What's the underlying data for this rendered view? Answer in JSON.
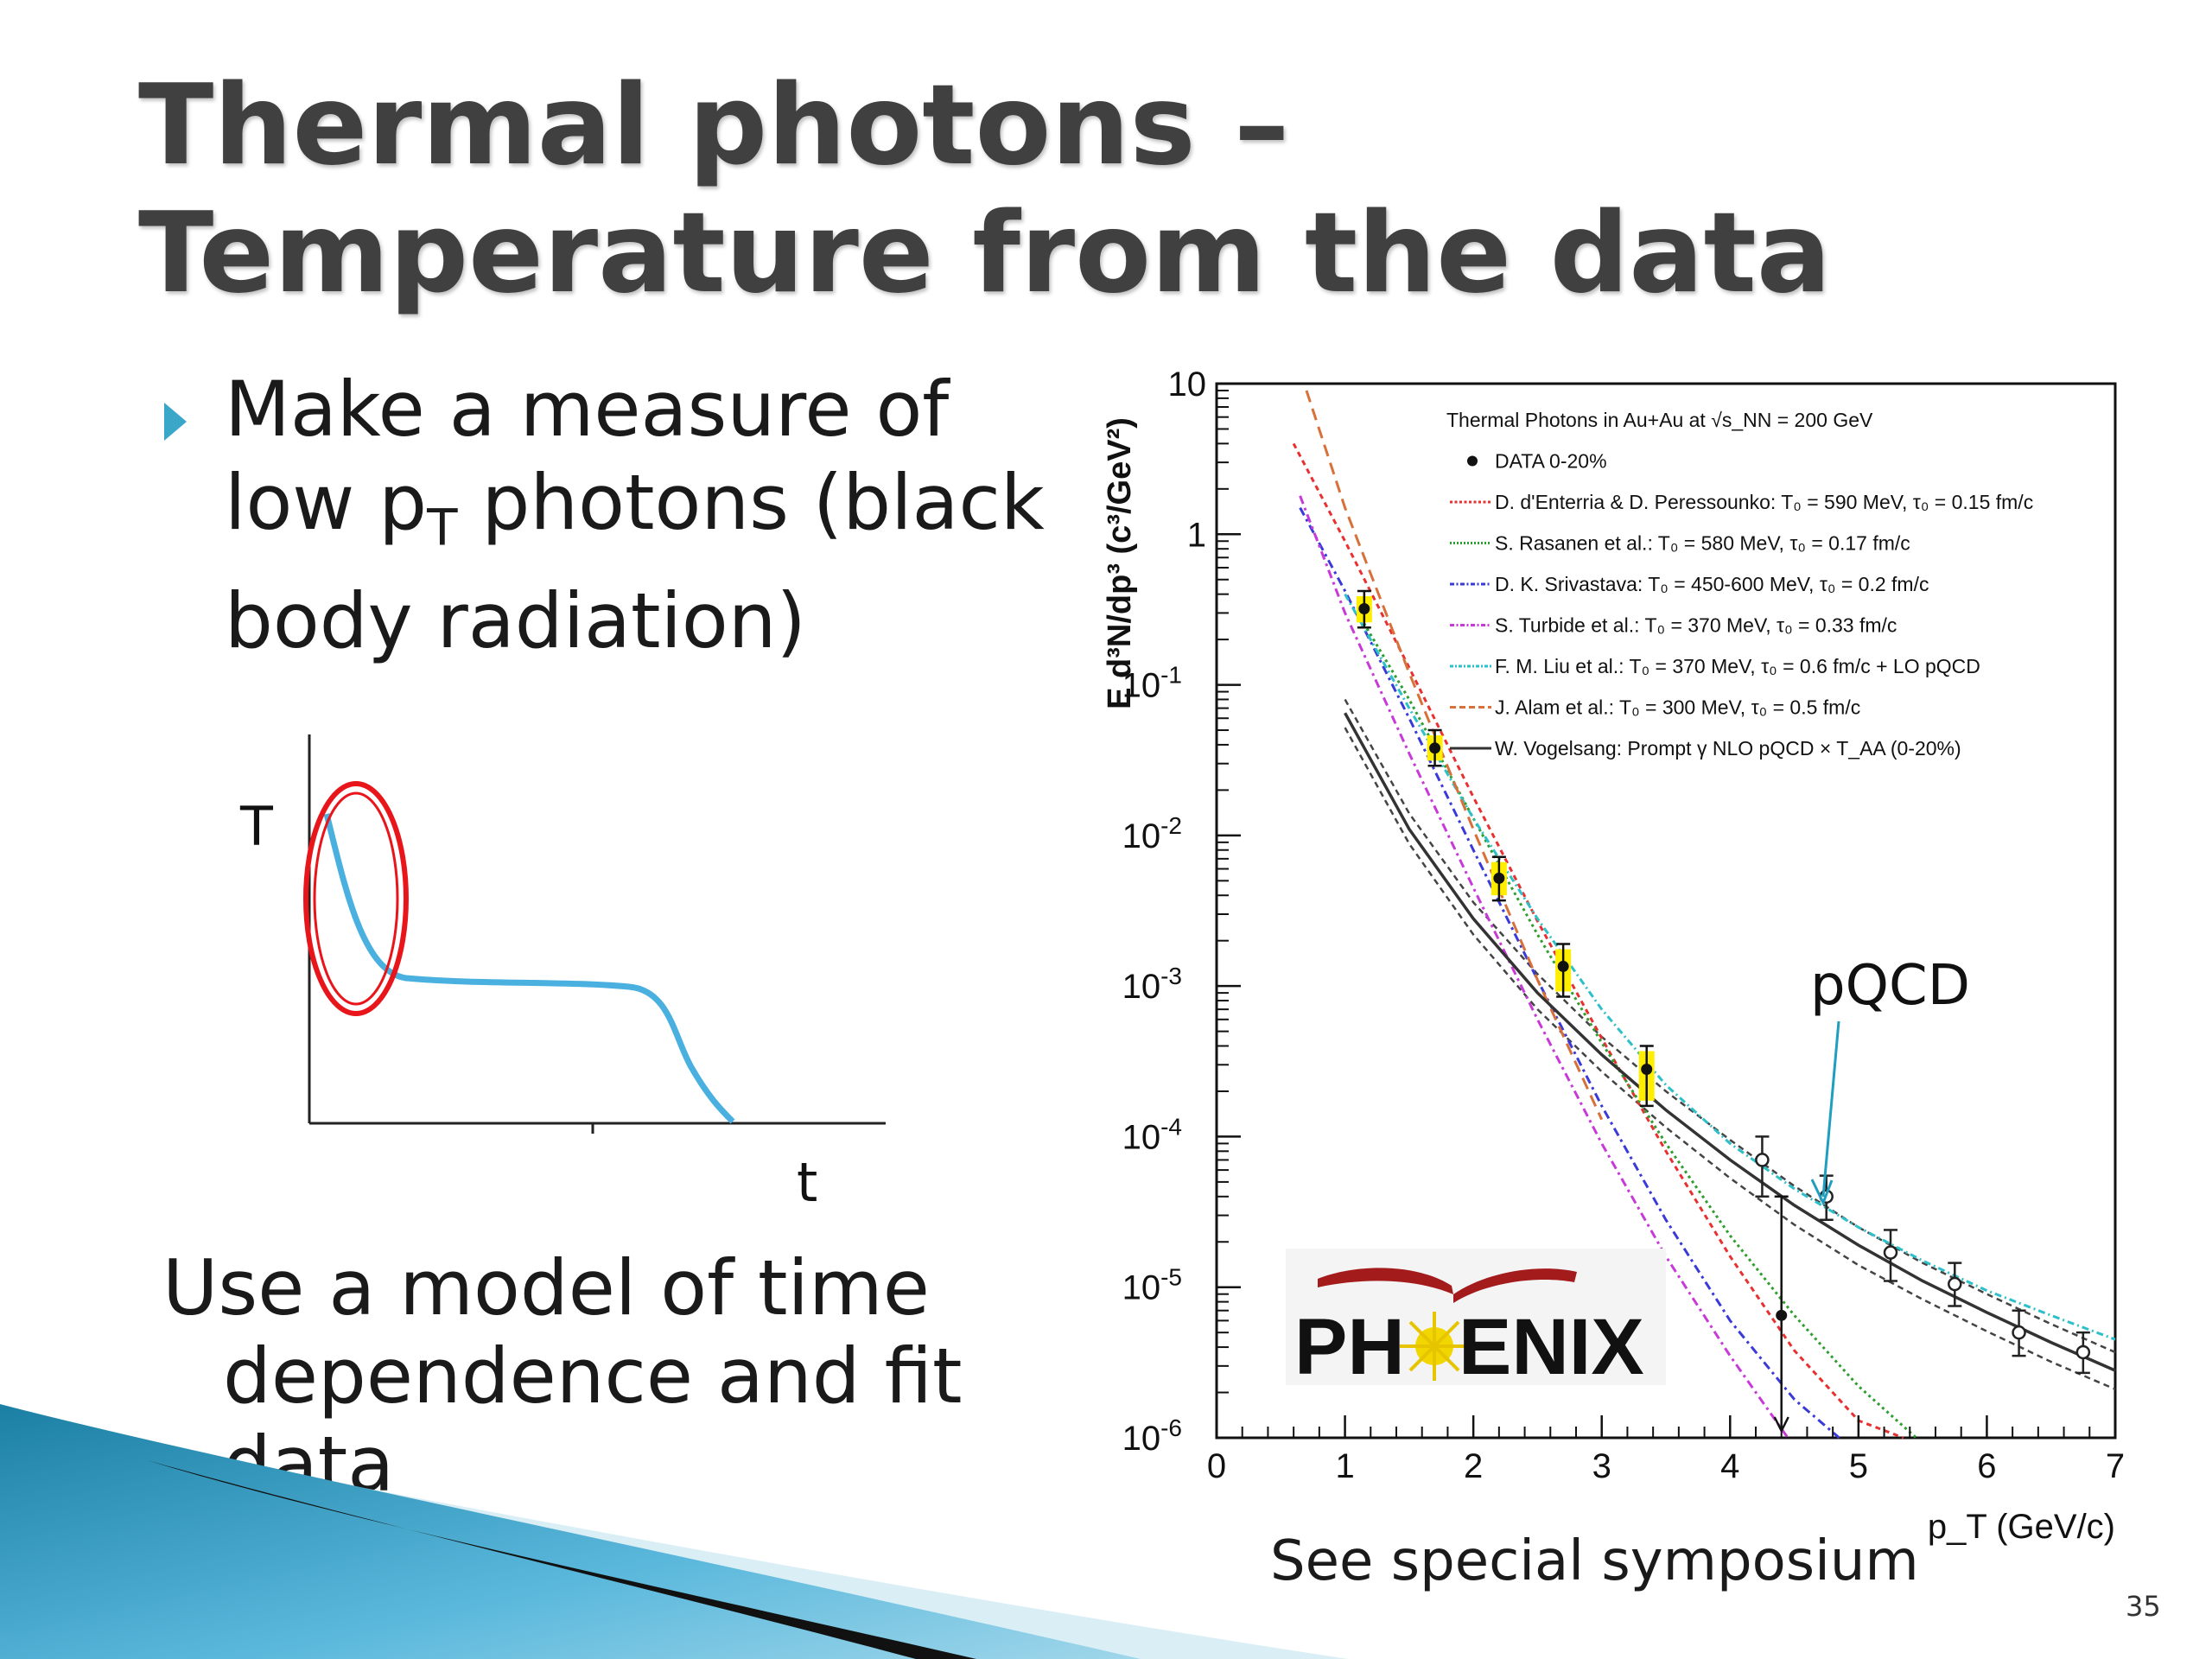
{
  "slide": {
    "title_line1": "Thermal photons –",
    "title_line2": "Temperature from the data",
    "bullet_part1": "Make a measure of low p",
    "bullet_sub": "T",
    "bullet_part2": " photons (black body radiation)",
    "model_text": "Use a model of time dependence and fit data",
    "symposium": "See special symposium",
    "page_number": "35",
    "annotation_pqcd": "pQCD",
    "logo_text_left": "PH",
    "logo_text_right": "ENIX",
    "colors": {
      "bullet": "#3aa6c8",
      "sketch_curve": "#4ab0e0",
      "highlight": "#e8151b",
      "data_band": "#ffee00",
      "arrow": "#1f9ec0"
    }
  },
  "sketch": {
    "ylabel": "T",
    "xlabel": "t"
  },
  "chart_data": {
    "type": "scatter",
    "xlabel": "p_T (GeV/c)",
    "ylabel": "E d³N/dp³ (c³/GeV²)",
    "xlim": [
      0,
      7
    ],
    "ylim": [
      1e-06,
      10
    ],
    "y_scale": "log",
    "x_ticks": [
      "0",
      "1",
      "2",
      "3",
      "4",
      "5",
      "6",
      "7"
    ],
    "y_ticks": [
      {
        "base": "10",
        "exp": "-6"
      },
      {
        "base": "10",
        "exp": "-5"
      },
      {
        "base": "10",
        "exp": "-4"
      },
      {
        "base": "10",
        "exp": "-3"
      },
      {
        "base": "10",
        "exp": "-2"
      },
      {
        "base": "10",
        "exp": "-1"
      },
      {
        "base": "1",
        "exp": ""
      },
      {
        "base": "10",
        "exp": ""
      }
    ],
    "legend_title": "Thermal Photons in Au+Au at √s_NN = 200 GeV",
    "legend_placement": "top-right",
    "data_series": {
      "name": "DATA 0-20%",
      "filled_points": [
        {
          "x": 1.15,
          "y": 0.32,
          "ylo": 0.24,
          "yhi": 0.42
        },
        {
          "x": 1.7,
          "y": 0.038,
          "ylo": 0.029,
          "yhi": 0.05
        },
        {
          "x": 2.2,
          "y": 0.0052,
          "ylo": 0.0037,
          "yhi": 0.0072
        },
        {
          "x": 2.7,
          "y": 0.00135,
          "ylo": 0.00085,
          "yhi": 0.0019
        },
        {
          "x": 3.35,
          "y": 0.00028,
          "ylo": 0.00016,
          "yhi": 0.0004
        },
        {
          "x": 4.4,
          "y": 6.5e-06,
          "ylo": 1.2e-06,
          "yhi": 4e-05
        }
      ],
      "open_points": [
        {
          "x": 4.25,
          "y": 7e-05,
          "ylo": 4e-05,
          "yhi": 0.0001
        },
        {
          "x": 4.75,
          "y": 4e-05,
          "ylo": 2.8e-05,
          "yhi": 5.5e-05
        },
        {
          "x": 5.25,
          "y": 1.7e-05,
          "ylo": 1.1e-05,
          "yhi": 2.4e-05
        },
        {
          "x": 5.75,
          "y": 1.05e-05,
          "ylo": 7.5e-06,
          "yhi": 1.45e-05
        },
        {
          "x": 6.25,
          "y": 5e-06,
          "ylo": 3.5e-06,
          "yhi": 7e-06
        },
        {
          "x": 6.75,
          "y": 3.7e-06,
          "ylo": 2.7e-06,
          "yhi": 5e-06
        }
      ]
    },
    "model_curves": [
      {
        "name": "D. d'Enterria & D. Peressounko: T₀ = 590 MeV, τ₀ = 0.15 fm/c",
        "color": "#e83030",
        "dash": "6,5",
        "points": [
          [
            0.6,
            4
          ],
          [
            1,
            0.9
          ],
          [
            1.5,
            0.13
          ],
          [
            2,
            0.018
          ],
          [
            2.5,
            0.0027
          ],
          [
            3,
            0.00045
          ],
          [
            3.5,
            8e-05
          ],
          [
            4,
            1.6e-05
          ],
          [
            4.5,
            3.8e-06
          ],
          [
            5,
            1.3e-06
          ],
          [
            5.35,
            1e-06
          ]
        ]
      },
      {
        "name": "S. Rasanen et al.: T₀ = 580 MeV, τ₀ = 0.17 fm/c",
        "color": "#2e9e2e",
        "dash": "3,4",
        "points": [
          [
            1.1,
            0.3
          ],
          [
            1.5,
            0.08
          ],
          [
            2,
            0.013
          ],
          [
            2.5,
            0.0022
          ],
          [
            3,
            0.00042
          ],
          [
            3.5,
            9e-05
          ],
          [
            4,
            2.2e-05
          ],
          [
            4.5,
            6.5e-06
          ],
          [
            5,
            2.2e-06
          ],
          [
            5.45,
            1e-06
          ]
        ]
      },
      {
        "name": "D. K. Srivastava: T₀ = 450-600 MeV, τ₀ = 0.2 fm/c",
        "color": "#3a3ad8",
        "dash": "10,5,3,5",
        "points": [
          [
            0.65,
            1.5
          ],
          [
            1,
            0.42
          ],
          [
            1.5,
            0.06
          ],
          [
            2,
            0.008
          ],
          [
            2.5,
            0.0011
          ],
          [
            3,
            0.00016
          ],
          [
            3.5,
            2.8e-05
          ],
          [
            4,
            6e-06
          ],
          [
            4.5,
            1.8e-06
          ],
          [
            4.85,
            1e-06
          ]
        ]
      },
      {
        "name": "S. Turbide et al.: T₀ = 370 MeV, τ₀ = 0.33 fm/c",
        "color": "#c83ad8",
        "dash": "10,5,3,5",
        "points": [
          [
            0.65,
            1.8
          ],
          [
            1,
            0.3
          ],
          [
            1.5,
            0.035
          ],
          [
            2,
            0.0045
          ],
          [
            2.5,
            0.0006
          ],
          [
            3,
            9e-05
          ],
          [
            3.5,
            1.6e-05
          ],
          [
            4,
            3.5e-06
          ],
          [
            4.45,
            1e-06
          ]
        ]
      },
      {
        "name": "F. M. Liu et al.: T₀ = 370 MeV, τ₀ = 0.6 fm/c + LO pQCD",
        "color": "#2ec0c8",
        "dash": "8,4,2,4",
        "points": [
          [
            1,
            0.4
          ],
          [
            1.5,
            0.07
          ],
          [
            2,
            0.013
          ],
          [
            2.5,
            0.0028
          ],
          [
            3,
            0.0007
          ],
          [
            3.5,
            0.00022
          ],
          [
            4,
            9e-05
          ],
          [
            4.5,
            4.5e-05
          ],
          [
            5,
            2.5e-05
          ],
          [
            5.5,
            1.5e-05
          ],
          [
            6,
            9.5e-06
          ],
          [
            6.5,
            6.5e-06
          ],
          [
            7,
            4.5e-06
          ]
        ]
      },
      {
        "name": "J. Alam et al.: T₀ = 300 MeV, τ₀ = 0.5 fm/c",
        "color": "#d8703a",
        "dash": "14,8",
        "points": [
          [
            0.7,
            9
          ],
          [
            1,
            1.5
          ],
          [
            1.5,
            0.12
          ],
          [
            2,
            0.011
          ],
          [
            2.5,
            0.0011
          ],
          [
            3,
            0.00013
          ]
        ]
      },
      {
        "name": "W. Vogelsang: Prompt γ NLO pQCD × T_AA (0-20%)",
        "color": "#333333",
        "dash": "",
        "points": [
          [
            1,
            0.065
          ],
          [
            1.5,
            0.011
          ],
          [
            2,
            0.0028
          ],
          [
            2.5,
            0.0009
          ],
          [
            3,
            0.00035
          ],
          [
            3.5,
            0.00015
          ],
          [
            4,
            7e-05
          ],
          [
            4.5,
            3.5e-05
          ],
          [
            5,
            1.9e-05
          ],
          [
            5.5,
            1.1e-05
          ],
          [
            6,
            6.8e-06
          ],
          [
            6.5,
            4.3e-06
          ],
          [
            7,
            2.8e-06
          ]
        ]
      }
    ],
    "vogelsang_band": {
      "upper": [
        [
          1,
          0.08
        ],
        [
          1.5,
          0.014
        ],
        [
          2,
          0.0036
        ],
        [
          2.5,
          0.0012
        ],
        [
          3,
          0.00046
        ],
        [
          3.5,
          0.0002
        ],
        [
          4,
          9.5e-05
        ],
        [
          4.5,
          4.7e-05
        ],
        [
          5,
          2.5e-05
        ],
        [
          5.5,
          1.45e-05
        ],
        [
          6,
          9e-06
        ],
        [
          6.5,
          5.7e-06
        ],
        [
          7,
          3.7e-06
        ]
      ],
      "lower": [
        [
          1,
          0.052
        ],
        [
          1.5,
          0.0088
        ],
        [
          2,
          0.0022
        ],
        [
          2.5,
          0.0007
        ],
        [
          3,
          0.00027
        ],
        [
          3.5,
          0.000115
        ],
        [
          4,
          5.3e-05
        ],
        [
          4.5,
          2.6e-05
        ],
        [
          5,
          1.4e-05
        ],
        [
          5.5,
          8.3e-06
        ],
        [
          6,
          5.1e-06
        ],
        [
          6.5,
          3.2e-06
        ],
        [
          7,
          2.1e-06
        ]
      ]
    }
  }
}
